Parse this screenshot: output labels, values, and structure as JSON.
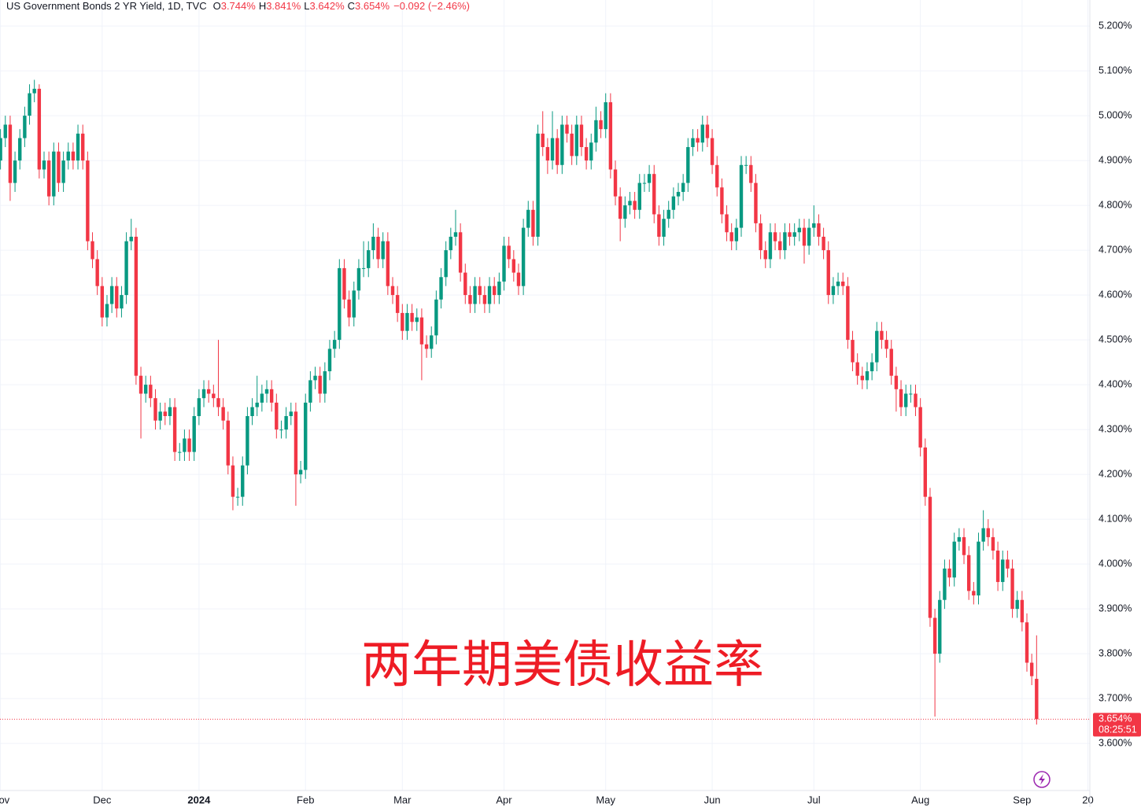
{
  "chart_data": {
    "type": "candlestick",
    "title": "US Government Bonds 2 YR Yield, 1D, TVC",
    "legend_values": [
      {
        "key": "O",
        "value": "3.744%"
      },
      {
        "key": "H",
        "value": "3.841%"
      },
      {
        "key": "L",
        "value": "3.642%"
      },
      {
        "key": "C",
        "value": "3.654%"
      }
    ],
    "change": "−0.092 (−2.46%)",
    "annotation": "两年期美债收益率",
    "last_price_label": "3.654%",
    "countdown": "08:25:51",
    "up_color": "#089981",
    "down_color": "#f23645",
    "grid": true,
    "xlim": [
      -0.1,
      225
    ],
    "ylim": [
      3.495,
      5.258
    ],
    "xticks": [
      {
        "value": 0,
        "label": "Nov"
      },
      {
        "value": 21,
        "label": "Dec"
      },
      {
        "value": 41,
        "label": "2024"
      },
      {
        "value": 63,
        "label": "Feb"
      },
      {
        "value": 83,
        "label": "Mar"
      },
      {
        "value": 104,
        "label": "Apr"
      },
      {
        "value": 125,
        "label": "May"
      },
      {
        "value": 147,
        "label": "Jun"
      },
      {
        "value": 168,
        "label": "Jul"
      },
      {
        "value": 190,
        "label": "Aug"
      },
      {
        "value": 211,
        "label": "Sep"
      },
      {
        "value": 224.6,
        "label": "20"
      }
    ],
    "yticks": [
      {
        "value": 3.6,
        "label": "3.600%"
      },
      {
        "value": 3.7,
        "label": "3.700%"
      },
      {
        "value": 3.8,
        "label": "3.800%"
      },
      {
        "value": 3.9,
        "label": "3.900%"
      },
      {
        "value": 4.0,
        "label": "4.000%"
      },
      {
        "value": 4.1,
        "label": "4.100%"
      },
      {
        "value": 4.2,
        "label": "4.200%"
      },
      {
        "value": 4.3,
        "label": "4.300%"
      },
      {
        "value": 4.4,
        "label": "4.400%"
      },
      {
        "value": 4.5,
        "label": "4.500%"
      },
      {
        "value": 4.6,
        "label": "4.600%"
      },
      {
        "value": 4.7,
        "label": "4.700%"
      },
      {
        "value": 4.8,
        "label": "4.800%"
      },
      {
        "value": 4.9,
        "label": "4.900%"
      },
      {
        "value": 5.0,
        "label": "5.000%"
      },
      {
        "value": 5.1,
        "label": "5.100%"
      },
      {
        "value": 5.2,
        "label": "5.200%"
      }
    ],
    "ohlc": [
      [
        4.9,
        4.97,
        4.88,
        4.95
      ],
      [
        4.95,
        5.0,
        4.93,
        4.98
      ],
      [
        4.98,
        5.0,
        4.81,
        4.85
      ],
      [
        4.85,
        4.92,
        4.83,
        4.9
      ],
      [
        4.9,
        4.97,
        4.88,
        4.95
      ],
      [
        4.95,
        5.02,
        4.93,
        5.0
      ],
      [
        5.0,
        5.07,
        4.98,
        5.05
      ],
      [
        5.05,
        5.08,
        5.03,
        5.06
      ],
      [
        5.06,
        5.07,
        4.86,
        4.88
      ],
      [
        4.88,
        4.92,
        4.86,
        4.9
      ],
      [
        4.9,
        4.92,
        4.8,
        4.82
      ],
      [
        4.82,
        4.94,
        4.8,
        4.92
      ],
      [
        4.92,
        4.94,
        4.83,
        4.85
      ],
      [
        4.85,
        4.92,
        4.83,
        4.9
      ],
      [
        4.9,
        4.94,
        4.88,
        4.92
      ],
      [
        4.92,
        4.94,
        4.88,
        4.9
      ],
      [
        4.9,
        4.98,
        4.88,
        4.96
      ],
      [
        4.96,
        4.98,
        4.88,
        4.9
      ],
      [
        4.9,
        4.92,
        4.7,
        4.72
      ],
      [
        4.72,
        4.74,
        4.66,
        4.68
      ],
      [
        4.68,
        4.7,
        4.6,
        4.62
      ],
      [
        4.62,
        4.64,
        4.53,
        4.55
      ],
      [
        4.55,
        4.6,
        4.53,
        4.58
      ],
      [
        4.58,
        4.64,
        4.56,
        4.62
      ],
      [
        4.62,
        4.64,
        4.55,
        4.57
      ],
      [
        4.57,
        4.62,
        4.55,
        4.6
      ],
      [
        4.6,
        4.74,
        4.58,
        4.72
      ],
      [
        4.72,
        4.77,
        4.7,
        4.73
      ],
      [
        4.73,
        4.75,
        4.4,
        4.42
      ],
      [
        4.42,
        4.44,
        4.28,
        4.38
      ],
      [
        4.38,
        4.42,
        4.36,
        4.4
      ],
      [
        4.4,
        4.42,
        4.35,
        4.37
      ],
      [
        4.37,
        4.39,
        4.3,
        4.32
      ],
      [
        4.32,
        4.36,
        4.3,
        4.34
      ],
      [
        4.34,
        4.36,
        4.31,
        4.33
      ],
      [
        4.33,
        4.37,
        4.31,
        4.35
      ],
      [
        4.35,
        4.37,
        4.23,
        4.25
      ],
      [
        4.25,
        4.27,
        4.23,
        4.25
      ],
      [
        4.25,
        4.3,
        4.23,
        4.28
      ],
      [
        4.28,
        4.3,
        4.23,
        4.25
      ],
      [
        4.25,
        4.35,
        4.23,
        4.33
      ],
      [
        4.33,
        4.39,
        4.31,
        4.37
      ],
      [
        4.37,
        4.41,
        4.35,
        4.39
      ],
      [
        4.39,
        4.41,
        4.36,
        4.38
      ],
      [
        4.38,
        4.4,
        4.35,
        4.37
      ],
      [
        4.37,
        4.5,
        4.33,
        4.35
      ],
      [
        4.35,
        4.37,
        4.3,
        4.32
      ],
      [
        4.32,
        4.34,
        4.2,
        4.22
      ],
      [
        4.22,
        4.24,
        4.12,
        4.15
      ],
      [
        4.15,
        4.17,
        4.13,
        4.15
      ],
      [
        4.15,
        4.24,
        4.13,
        4.22
      ],
      [
        4.22,
        4.35,
        4.2,
        4.33
      ],
      [
        4.33,
        4.37,
        4.31,
        4.35
      ],
      [
        4.35,
        4.42,
        4.33,
        4.36
      ],
      [
        4.36,
        4.4,
        4.34,
        4.38
      ],
      [
        4.38,
        4.41,
        4.36,
        4.39
      ],
      [
        4.39,
        4.41,
        4.34,
        4.36
      ],
      [
        4.36,
        4.38,
        4.28,
        4.3
      ],
      [
        4.3,
        4.32,
        4.28,
        4.3
      ],
      [
        4.3,
        4.35,
        4.28,
        4.33
      ],
      [
        4.33,
        4.36,
        4.31,
        4.34
      ],
      [
        4.34,
        4.36,
        4.13,
        4.2
      ],
      [
        4.2,
        4.23,
        4.18,
        4.21
      ],
      [
        4.21,
        4.38,
        4.19,
        4.36
      ],
      [
        4.36,
        4.43,
        4.34,
        4.41
      ],
      [
        4.41,
        4.44,
        4.39,
        4.42
      ],
      [
        4.42,
        4.44,
        4.36,
        4.38
      ],
      [
        4.38,
        4.45,
        4.36,
        4.43
      ],
      [
        4.43,
        4.5,
        4.41,
        4.48
      ],
      [
        4.48,
        4.52,
        4.46,
        4.5
      ],
      [
        4.5,
        4.68,
        4.48,
        4.66
      ],
      [
        4.66,
        4.68,
        4.57,
        4.59
      ],
      [
        4.59,
        4.61,
        4.53,
        4.55
      ],
      [
        4.55,
        4.63,
        4.53,
        4.61
      ],
      [
        4.61,
        4.68,
        4.59,
        4.66
      ],
      [
        4.66,
        4.72,
        4.64,
        4.66
      ],
      [
        4.66,
        4.72,
        4.64,
        4.7
      ],
      [
        4.7,
        4.76,
        4.68,
        4.73
      ],
      [
        4.73,
        4.75,
        4.66,
        4.68
      ],
      [
        4.68,
        4.74,
        4.66,
        4.72
      ],
      [
        4.72,
        4.74,
        4.6,
        4.62
      ],
      [
        4.62,
        4.64,
        4.58,
        4.6
      ],
      [
        4.6,
        4.62,
        4.54,
        4.56
      ],
      [
        4.56,
        4.58,
        4.5,
        4.52
      ],
      [
        4.52,
        4.58,
        4.5,
        4.56
      ],
      [
        4.56,
        4.58,
        4.52,
        4.54
      ],
      [
        4.54,
        4.57,
        4.52,
        4.55
      ],
      [
        4.55,
        4.57,
        4.41,
        4.49
      ],
      [
        4.49,
        4.51,
        4.46,
        4.48
      ],
      [
        4.48,
        4.53,
        4.46,
        4.51
      ],
      [
        4.51,
        4.61,
        4.49,
        4.59
      ],
      [
        4.59,
        4.66,
        4.57,
        4.64
      ],
      [
        4.64,
        4.72,
        4.62,
        4.7
      ],
      [
        4.7,
        4.75,
        4.68,
        4.73
      ],
      [
        4.73,
        4.79,
        4.71,
        4.74
      ],
      [
        4.74,
        4.76,
        4.63,
        4.65
      ],
      [
        4.65,
        4.67,
        4.58,
        4.6
      ],
      [
        4.6,
        4.62,
        4.56,
        4.58
      ],
      [
        4.58,
        4.64,
        4.56,
        4.62
      ],
      [
        4.62,
        4.64,
        4.58,
        4.6
      ],
      [
        4.6,
        4.62,
        4.56,
        4.58
      ],
      [
        4.58,
        4.64,
        4.56,
        4.62
      ],
      [
        4.62,
        4.64,
        4.58,
        4.6
      ],
      [
        4.6,
        4.65,
        4.58,
        4.63
      ],
      [
        4.63,
        4.73,
        4.61,
        4.71
      ],
      [
        4.71,
        4.73,
        4.66,
        4.68
      ],
      [
        4.68,
        4.7,
        4.63,
        4.65
      ],
      [
        4.65,
        4.67,
        4.6,
        4.62
      ],
      [
        4.62,
        4.77,
        4.6,
        4.75
      ],
      [
        4.75,
        4.81,
        4.73,
        4.79
      ],
      [
        4.79,
        4.81,
        4.71,
        4.73
      ],
      [
        4.73,
        4.98,
        4.71,
        4.96
      ],
      [
        4.96,
        5.01,
        4.91,
        4.93
      ],
      [
        4.93,
        4.95,
        4.87,
        4.9
      ],
      [
        4.9,
        5.01,
        4.88,
        4.95
      ],
      [
        4.95,
        4.97,
        4.87,
        4.89
      ],
      [
        4.89,
        5.0,
        4.87,
        4.98
      ],
      [
        4.98,
        5.0,
        4.94,
        4.96
      ],
      [
        4.96,
        4.98,
        4.89,
        4.91
      ],
      [
        4.91,
        5.0,
        4.89,
        4.98
      ],
      [
        4.98,
        5.0,
        4.91,
        4.93
      ],
      [
        4.93,
        4.95,
        4.88,
        4.9
      ],
      [
        4.9,
        4.96,
        4.88,
        4.94
      ],
      [
        4.94,
        5.02,
        4.92,
        4.99
      ],
      [
        4.99,
        5.01,
        4.95,
        4.97
      ],
      [
        4.97,
        5.05,
        4.95,
        5.03
      ],
      [
        5.03,
        5.05,
        4.86,
        4.88
      ],
      [
        4.88,
        4.9,
        4.8,
        4.82
      ],
      [
        4.82,
        4.84,
        4.72,
        4.77
      ],
      [
        4.77,
        4.82,
        4.75,
        4.8
      ],
      [
        4.8,
        4.83,
        4.78,
        4.81
      ],
      [
        4.81,
        4.83,
        4.77,
        4.79
      ],
      [
        4.79,
        4.87,
        4.77,
        4.85
      ],
      [
        4.85,
        4.87,
        4.83,
        4.85
      ],
      [
        4.85,
        4.89,
        4.83,
        4.87
      ],
      [
        4.87,
        4.89,
        4.76,
        4.78
      ],
      [
        4.78,
        4.8,
        4.71,
        4.73
      ],
      [
        4.73,
        4.79,
        4.71,
        4.77
      ],
      [
        4.77,
        4.81,
        4.75,
        4.79
      ],
      [
        4.79,
        4.84,
        4.77,
        4.82
      ],
      [
        4.82,
        4.85,
        4.8,
        4.83
      ],
      [
        4.83,
        4.87,
        4.81,
        4.85
      ],
      [
        4.85,
        4.95,
        4.83,
        4.93
      ],
      [
        4.93,
        4.97,
        4.91,
        4.95
      ],
      [
        4.95,
        4.97,
        4.92,
        4.94
      ],
      [
        4.94,
        5.0,
        4.92,
        4.98
      ],
      [
        4.98,
        5.0,
        4.93,
        4.95
      ],
      [
        4.95,
        4.97,
        4.87,
        4.89
      ],
      [
        4.89,
        4.91,
        4.82,
        4.84
      ],
      [
        4.84,
        4.86,
        4.76,
        4.78
      ],
      [
        4.78,
        4.8,
        4.72,
        4.74
      ],
      [
        4.74,
        4.76,
        4.7,
        4.72
      ],
      [
        4.72,
        4.77,
        4.7,
        4.75
      ],
      [
        4.75,
        4.91,
        4.73,
        4.89
      ],
      [
        4.89,
        4.91,
        4.87,
        4.89
      ],
      [
        4.89,
        4.91,
        4.83,
        4.85
      ],
      [
        4.85,
        4.87,
        4.74,
        4.76
      ],
      [
        4.76,
        4.78,
        4.68,
        4.7
      ],
      [
        4.7,
        4.72,
        4.66,
        4.68
      ],
      [
        4.68,
        4.76,
        4.66,
        4.74
      ],
      [
        4.74,
        4.76,
        4.7,
        4.72
      ],
      [
        4.72,
        4.74,
        4.68,
        4.7
      ],
      [
        4.7,
        4.76,
        4.68,
        4.74
      ],
      [
        4.74,
        4.76,
        4.71,
        4.73
      ],
      [
        4.73,
        4.76,
        4.71,
        4.74
      ],
      [
        4.74,
        4.77,
        4.72,
        4.75
      ],
      [
        4.75,
        4.77,
        4.67,
        4.71
      ],
      [
        4.71,
        4.77,
        4.69,
        4.75
      ],
      [
        4.75,
        4.8,
        4.73,
        4.76
      ],
      [
        4.76,
        4.78,
        4.71,
        4.73
      ],
      [
        4.73,
        4.75,
        4.68,
        4.7
      ],
      [
        4.7,
        4.72,
        4.58,
        4.6
      ],
      [
        4.6,
        4.64,
        4.58,
        4.62
      ],
      [
        4.62,
        4.65,
        4.6,
        4.63
      ],
      [
        4.63,
        4.65,
        4.6,
        4.62
      ],
      [
        4.62,
        4.64,
        4.48,
        4.5
      ],
      [
        4.5,
        4.52,
        4.43,
        4.45
      ],
      [
        4.45,
        4.47,
        4.4,
        4.42
      ],
      [
        4.42,
        4.44,
        4.39,
        4.41
      ],
      [
        4.41,
        4.45,
        4.39,
        4.43
      ],
      [
        4.43,
        4.47,
        4.41,
        4.45
      ],
      [
        4.45,
        4.54,
        4.43,
        4.52
      ],
      [
        4.52,
        4.54,
        4.48,
        4.5
      ],
      [
        4.5,
        4.52,
        4.46,
        4.48
      ],
      [
        4.48,
        4.5,
        4.4,
        4.42
      ],
      [
        4.42,
        4.44,
        4.34,
        4.39
      ],
      [
        4.39,
        4.41,
        4.33,
        4.35
      ],
      [
        4.35,
        4.4,
        4.33,
        4.38
      ],
      [
        4.38,
        4.4,
        4.36,
        4.38
      ],
      [
        4.38,
        4.4,
        4.33,
        4.35
      ],
      [
        4.35,
        4.37,
        4.24,
        4.26
      ],
      [
        4.26,
        4.28,
        4.13,
        4.15
      ],
      [
        4.15,
        4.17,
        3.86,
        3.88
      ],
      [
        3.88,
        3.9,
        3.66,
        3.8
      ],
      [
        3.8,
        3.94,
        3.78,
        3.92
      ],
      [
        3.92,
        4.01,
        3.9,
        3.99
      ],
      [
        3.99,
        4.01,
        3.95,
        3.97
      ],
      [
        3.97,
        4.07,
        3.95,
        4.05
      ],
      [
        4.05,
        4.08,
        4.03,
        4.06
      ],
      [
        4.06,
        4.08,
        4.0,
        4.02
      ],
      [
        4.02,
        4.04,
        3.92,
        3.94
      ],
      [
        3.94,
        3.96,
        3.91,
        3.93
      ],
      [
        3.93,
        4.07,
        3.91,
        4.05
      ],
      [
        4.05,
        4.12,
        4.03,
        4.08
      ],
      [
        4.08,
        4.1,
        4.04,
        4.06
      ],
      [
        4.06,
        4.08,
        4.01,
        4.03
      ],
      [
        4.03,
        4.05,
        3.94,
        3.96
      ],
      [
        3.96,
        4.03,
        3.94,
        4.01
      ],
      [
        4.01,
        4.03,
        3.97,
        3.99
      ],
      [
        3.99,
        4.01,
        3.88,
        3.9
      ],
      [
        3.9,
        3.94,
        3.88,
        3.92
      ],
      [
        3.92,
        3.94,
        3.85,
        3.87
      ],
      [
        3.87,
        3.89,
        3.76,
        3.78
      ],
      [
        3.78,
        3.8,
        3.73,
        3.75
      ],
      [
        3.744,
        3.841,
        3.642,
        3.654
      ]
    ]
  }
}
